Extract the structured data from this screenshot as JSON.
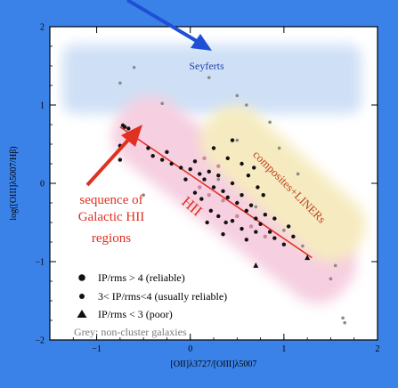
{
  "colors": {
    "frame": "#3b82e8",
    "seyfert_band": "#cfe0f6",
    "hii_band": "#f6cfe0",
    "liner_band": "#f6ebc0",
    "annotation": "#e03020",
    "arrow_blue": "#1f4fd6",
    "point_dark": "#111111",
    "point_grey": "#8a8a8a",
    "point_pink": "#c98a9a"
  },
  "chart_data": {
    "type": "scatter",
    "xlabel": "[OII]λ3727/[OIII]λ5007",
    "ylabel": "log([OIII]λ5007/Hβ)",
    "xlim": [
      -1.5,
      2
    ],
    "ylim": [
      -2,
      2
    ],
    "x_ticks": [
      {
        "value": -1,
        "label": "−1"
      },
      {
        "value": 0,
        "label": "0"
      },
      {
        "value": 1,
        "label": "1"
      },
      {
        "value": 2,
        "label": "2"
      }
    ],
    "y_ticks": [
      {
        "value": -2,
        "label": "−2"
      },
      {
        "value": -1,
        "label": "−1"
      },
      {
        "value": 0,
        "label": "0"
      },
      {
        "value": 1,
        "label": "1"
      },
      {
        "value": 2,
        "label": "2"
      }
    ],
    "regions": [
      {
        "label": "Seyferts"
      },
      {
        "label": "HII"
      },
      {
        "label": "composites+LINERs"
      }
    ],
    "hii_sequence_line": [
      [
        -0.75,
        0.72
      ],
      [
        1.3,
        -0.95
      ]
    ],
    "annotations": {
      "sequence_text": [
        "sequence of",
        "Galactic HII",
        "regions"
      ]
    },
    "legend": {
      "placement": "bottom-left",
      "entries": [
        {
          "marker": "circle-large",
          "label": "IP/rms > 4 (reliable)"
        },
        {
          "marker": "circle-small",
          "label": "3< IP/rms<4 (usually reliable)"
        },
        {
          "marker": "triangle",
          "label": "IP/rms < 3 (poor)"
        }
      ],
      "note": "Grey: non-cluster galaxies"
    },
    "series": [
      {
        "marker": "circle",
        "color": "grey",
        "points": [
          [
            -0.6,
            1.48
          ],
          [
            -0.75,
            1.28
          ],
          [
            -0.3,
            1.02
          ],
          [
            0.2,
            1.35
          ],
          [
            0.5,
            1.12
          ],
          [
            0.6,
            1.0
          ],
          [
            0.85,
            0.78
          ],
          [
            0.95,
            0.45
          ],
          [
            1.15,
            0.12
          ],
          [
            1.55,
            -1.05
          ],
          [
            1.5,
            -1.22
          ],
          [
            1.63,
            -1.72
          ],
          [
            1.65,
            -1.78
          ],
          [
            0.5,
            0.55
          ],
          [
            0.3,
            0.05
          ],
          [
            0.7,
            -0.3
          ],
          [
            1.0,
            -0.6
          ],
          [
            1.2,
            -0.8
          ],
          [
            -0.5,
            -0.15
          ]
        ]
      },
      {
        "marker": "circle",
        "color": "dark",
        "points": [
          [
            -0.72,
            0.74
          ],
          [
            -0.7,
            0.72
          ],
          [
            -0.66,
            0.7
          ],
          [
            -0.75,
            0.48
          ],
          [
            -0.6,
            0.55
          ],
          [
            -0.75,
            0.3
          ],
          [
            -0.45,
            0.45
          ],
          [
            -0.4,
            0.35
          ],
          [
            -0.3,
            0.3
          ],
          [
            -0.2,
            0.25
          ],
          [
            -0.25,
            0.4
          ],
          [
            -0.1,
            0.2
          ],
          [
            0.0,
            0.18
          ],
          [
            0.05,
            0.28
          ],
          [
            0.1,
            0.12
          ],
          [
            0.15,
            0.05
          ],
          [
            0.2,
            0.15
          ],
          [
            0.25,
            -0.05
          ],
          [
            0.3,
            0.1
          ],
          [
            0.35,
            -0.1
          ],
          [
            0.4,
            -0.18
          ],
          [
            0.45,
            0.0
          ],
          [
            0.5,
            -0.25
          ],
          [
            0.55,
            -0.15
          ],
          [
            0.6,
            -0.35
          ],
          [
            0.65,
            -0.28
          ],
          [
            0.7,
            -0.45
          ],
          [
            0.75,
            -0.52
          ],
          [
            0.8,
            -0.4
          ],
          [
            0.85,
            -0.62
          ],
          [
            0.9,
            -0.7
          ],
          [
            1.0,
            -0.78
          ],
          [
            0.05,
            -0.12
          ],
          [
            0.12,
            -0.2
          ],
          [
            0.22,
            -0.35
          ],
          [
            0.3,
            -0.42
          ],
          [
            0.38,
            -0.5
          ],
          [
            0.45,
            -0.48
          ],
          [
            0.55,
            -0.58
          ],
          [
            -0.05,
            0.05
          ],
          [
            0.4,
            0.32
          ],
          [
            0.55,
            0.25
          ],
          [
            0.62,
            0.1
          ],
          [
            0.68,
            0.2
          ],
          [
            0.72,
            -0.05
          ],
          [
            0.78,
            -0.15
          ],
          [
            0.25,
            0.45
          ],
          [
            0.45,
            0.55
          ],
          [
            0.18,
            -0.5
          ],
          [
            0.35,
            -0.65
          ],
          [
            0.6,
            -0.72
          ],
          [
            0.7,
            -0.62
          ],
          [
            0.9,
            -0.45
          ],
          [
            1.05,
            -0.55
          ],
          [
            1.1,
            -0.68
          ]
        ]
      },
      {
        "marker": "circle",
        "color": "pink",
        "points": [
          [
            0.1,
            -0.05
          ],
          [
            0.2,
            -0.15
          ],
          [
            0.35,
            -0.22
          ],
          [
            0.5,
            -0.42
          ],
          [
            0.65,
            -0.55
          ],
          [
            0.8,
            -0.68
          ],
          [
            0.15,
            0.32
          ],
          [
            0.3,
            0.22
          ]
        ]
      },
      {
        "marker": "triangle",
        "color": "dark",
        "points": [
          [
            0.7,
            -1.05
          ],
          [
            1.25,
            -0.95
          ]
        ]
      }
    ]
  }
}
